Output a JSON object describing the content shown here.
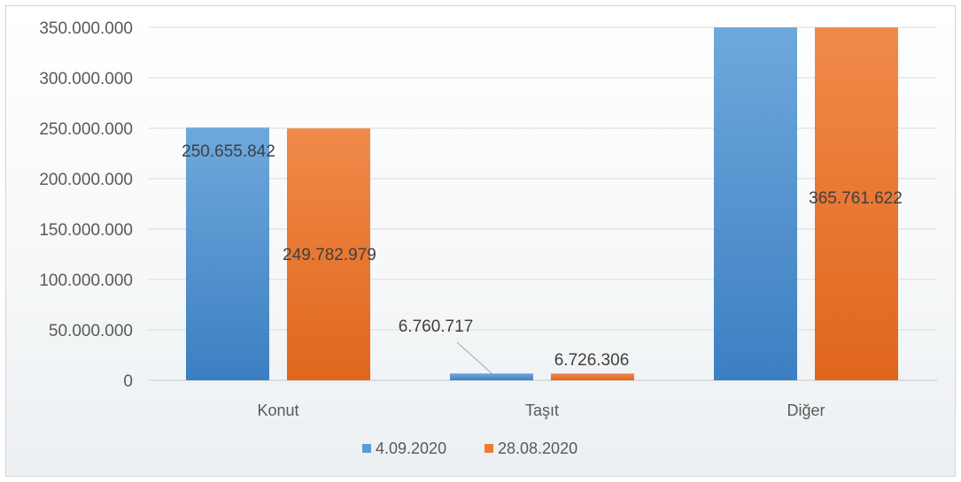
{
  "chart_data": {
    "type": "bar",
    "categories": [
      "Konut",
      "Taşıt",
      "Diğer"
    ],
    "series": [
      {
        "name": "4.09.2020",
        "values": [
          250655842,
          6760717,
          365761622
        ],
        "color": "#5b9bd5",
        "labels": [
          "250.655.842",
          "6.760.717",
          ""
        ]
      },
      {
        "name": "28.08.2020",
        "values": [
          249782979,
          6726306,
          365761622
        ],
        "color": "#ed7d31",
        "labels": [
          "249.782.979",
          "6.726.306",
          "365.761.622"
        ]
      }
    ],
    "y_ticks": [
      "0",
      "50.000.000",
      "100.000.000",
      "150.000.000",
      "200.000.000",
      "250.000.000",
      "300.000.000",
      "350.000.000"
    ],
    "ylim": [
      0,
      350000000
    ],
    "grid": true,
    "legend_position": "bottom",
    "title": "",
    "xlabel": "",
    "ylabel": ""
  }
}
